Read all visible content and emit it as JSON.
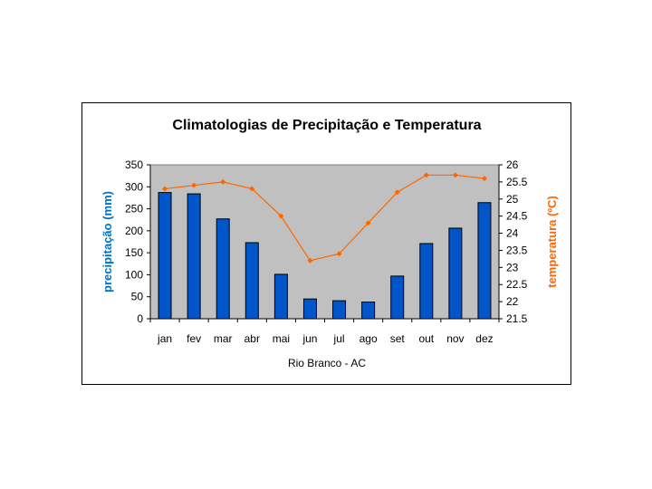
{
  "chart_data": {
    "type": "bar+line",
    "title": "Climatologias de Precipitação e Temperatura",
    "xlabel": "Rio Branco - AC",
    "categories": [
      "jan",
      "fev",
      "mar",
      "abr",
      "mai",
      "jun",
      "jul",
      "ago",
      "set",
      "out",
      "nov",
      "dez"
    ],
    "series": [
      {
        "name": "precipitação (mm)",
        "type": "bar",
        "axis": "left",
        "values": [
          287,
          284,
          227,
          173,
          101,
          45,
          41,
          38,
          97,
          171,
          206,
          264
        ]
      },
      {
        "name": "temperatura (ºC)",
        "type": "line",
        "axis": "right",
        "values": [
          25.3,
          25.4,
          25.5,
          25.3,
          24.5,
          23.2,
          23.4,
          24.3,
          25.2,
          25.7,
          25.7,
          25.6
        ]
      }
    ],
    "ylabel": "precipitação (mm)",
    "ylim": [
      0,
      350
    ],
    "yticks": [
      "0",
      "50",
      "100",
      "150",
      "200",
      "250",
      "300",
      "350"
    ],
    "y2label": "temperatura (ºC)",
    "y2lim": [
      21.5,
      26
    ],
    "y2ticks": [
      "21.5",
      "22",
      "22.5",
      "23",
      "23.5",
      "24",
      "24.5",
      "25",
      "25.5",
      "26"
    ],
    "grid": false,
    "colors": {
      "bar": "#0055c8",
      "line": "#ff6600",
      "plot_bg": "#c0c0c0",
      "ylabel": "#0070c0",
      "y2label": "#ff6600"
    }
  }
}
